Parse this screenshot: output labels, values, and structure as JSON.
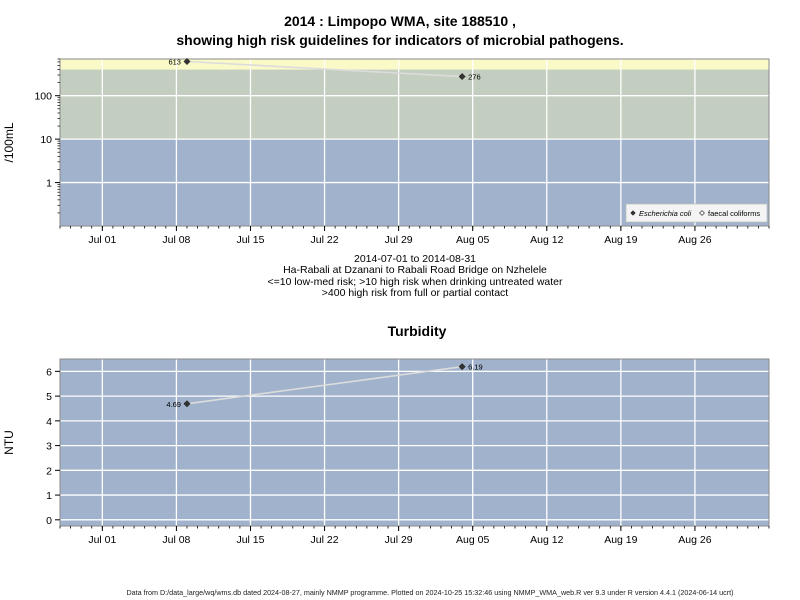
{
  "chart_data": [
    {
      "type": "line",
      "title_line1": "2014 : Limpopo WMA, site 188510 ,",
      "title_line2": "showing high risk guidelines for indicators of microbial pathogens.",
      "ylabel": "/100mL",
      "yscale": "log",
      "ylim": [
        0.1,
        700
      ],
      "yticks": [
        {
          "value": 1,
          "label": "1"
        },
        {
          "value": 10,
          "label": "10"
        },
        {
          "value": 100,
          "label": "100"
        }
      ],
      "xlim": [
        "2014-06-27",
        "2014-09-02"
      ],
      "xticks": [
        "Jul 01",
        "Jul 08",
        "Jul 15",
        "Jul 22",
        "Jul 29",
        "Aug 05",
        "Aug 12",
        "Aug 19",
        "Aug 26"
      ],
      "bands": [
        {
          "from": 0.1,
          "to": 10,
          "color": "#a1b2cc"
        },
        {
          "from": 10,
          "to": 400,
          "color": "#c3cec0"
        },
        {
          "from": 400,
          "to": 700,
          "color": "#fafac8"
        }
      ],
      "series": [
        {
          "name": "Escherichia coli",
          "marker": "filled-diamond",
          "points": [
            {
              "x": "2014-07-09",
              "y": 613,
              "label": "613"
            },
            {
              "x": "2014-08-04",
              "y": 276,
              "label": "276"
            }
          ]
        }
      ],
      "legend": [
        "Escherichia coli",
        "faecal coliforms"
      ],
      "legend_position": "bottom-right",
      "grid": true
    },
    {
      "type": "line",
      "title": "Turbidity",
      "ylabel": "NTU",
      "ylim": [
        -0.25,
        6.5
      ],
      "yticks": [
        {
          "value": 0,
          "label": "0"
        },
        {
          "value": 1,
          "label": "1"
        },
        {
          "value": 2,
          "label": "2"
        },
        {
          "value": 3,
          "label": "3"
        },
        {
          "value": 4,
          "label": "4"
        },
        {
          "value": 5,
          "label": "5"
        },
        {
          "value": 6,
          "label": "6"
        }
      ],
      "xlim": [
        "2014-06-27",
        "2014-09-02"
      ],
      "xticks": [
        "Jul 01",
        "Jul 08",
        "Jul 15",
        "Jul 22",
        "Jul 29",
        "Aug 05",
        "Aug 12",
        "Aug 19",
        "Aug 26"
      ],
      "series": [
        {
          "name": "",
          "marker": "filled-diamond",
          "points": [
            {
              "x": "2014-07-09",
              "y": 4.69,
              "label": "4.69"
            },
            {
              "x": "2014-08-04",
              "y": 6.19,
              "label": "6.19"
            }
          ]
        }
      ],
      "grid": true
    }
  ],
  "subtitle_lines": [
    "2014-07-01 to 2014-08-31",
    "Ha-Rabali at Dzanani to Rabali Road Bridge on Nzhelele",
    "<=10 low-med risk; >10 high risk when drinking untreated water",
    ">400 high risk from full or partial contact"
  ],
  "footer": "Data from D:/data_large/wq/wms.db dated 2024-08-27, mainly NMMP programme. Plotted on 2024-10-25 15:32:46 using NMMP_WMA_web.R ver 9.3 under R version 4.4.1 (2024-06-14 ucrt)",
  "colors": {
    "band_low": "#a1b2cc",
    "band_high": "#c3cec0",
    "band_contact": "#fafac8",
    "panel_bg": "#a1b2cc",
    "grid": "#ffffff",
    "line": "#dcdcdc",
    "marker": "#333333"
  }
}
